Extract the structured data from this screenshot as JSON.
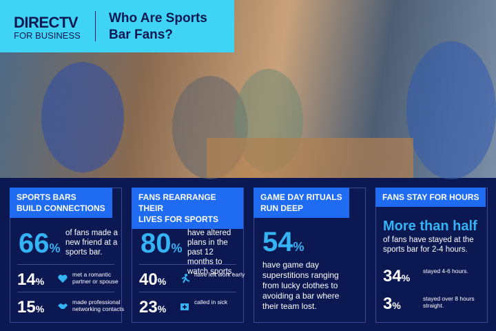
{
  "header": {
    "logo_line1": "DIRECTV",
    "logo_line2": "FOR BUSINESS",
    "title": "Who Are Sports Bar Fans?"
  },
  "cards": [
    {
      "label": [
        "SPORTS BARS",
        "BUILD CONNECTIONS"
      ],
      "layout": "side",
      "main": {
        "value": 66,
        "unit": "%",
        "text": "of fans made a new friend at a sports bar."
      },
      "items": [
        {
          "value": 14,
          "unit": "%",
          "icon": "heart",
          "text": "met a romantic partner or spouse"
        },
        {
          "value": 15,
          "unit": "%",
          "icon": "handshake",
          "text": "made professional networking contacts"
        }
      ]
    },
    {
      "label": [
        "FANS REARRANGE THEIR",
        "LIVES FOR SPORTS"
      ],
      "layout": "side",
      "main": {
        "value": 80,
        "unit": "%",
        "text": "have altered plans in the past 12 months to watch sports."
      },
      "items": [
        {
          "value": 40,
          "unit": "%",
          "icon": "run",
          "text": "have left work early"
        },
        {
          "value": 23,
          "unit": "%",
          "icon": "medkit",
          "text": "called in sick"
        }
      ]
    },
    {
      "label": [
        "GAME DAY RITUALS",
        "RUN DEEP"
      ],
      "layout": "below",
      "main": {
        "value": 54,
        "unit": "%",
        "text": "have game day superstitions ranging from lucky clothes to avoiding a bar where their team lost."
      },
      "items": []
    },
    {
      "label": [
        "FANS STAY FOR HOURS"
      ],
      "layout": "headline",
      "main": {
        "headline": "More than half",
        "text": "of fans have stayed at the sports bar for 2-4 hours."
      },
      "items": [
        {
          "value": 34,
          "unit": "%",
          "text": "stayed 4-6 hours."
        },
        {
          "value": 3,
          "unit": "%",
          "text": "stayed over 8 hours straight."
        }
      ]
    }
  ]
}
